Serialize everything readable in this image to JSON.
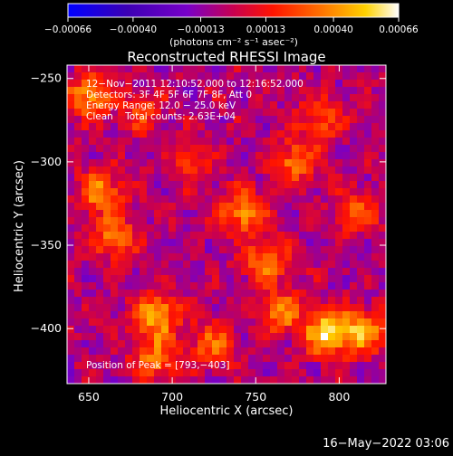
{
  "chart_data": {
    "type": "heatmap",
    "title": "Reconstructed RHESSI Image",
    "xlabel": "Heliocentric X (arcsec)",
    "ylabel": "Heliocentric Y (arcsec)",
    "xlim": [
      637,
      828
    ],
    "ylim": [
      -433,
      -242
    ],
    "xticks": [
      650,
      700,
      750,
      800
    ],
    "yticks": [
      -250,
      -300,
      -350,
      -400
    ],
    "xtick_labels": [
      "650",
      "700",
      "750",
      "800"
    ],
    "ytick_labels": [
      "−250",
      "−300",
      "−350",
      "−400"
    ],
    "colorbar": {
      "range": [
        -0.00066,
        0.00066
      ],
      "tick_values": [
        -0.00066,
        -0.0004,
        -0.00013,
        0.00013,
        0.0004,
        0.00066
      ],
      "tick_labels": [
        "−0.00066",
        "−0.00040",
        "−0.00013",
        "0.00013",
        "0.00040",
        "0.00066"
      ],
      "unit_label": "(photons cm⁻² s⁻¹ asec⁻²)"
    },
    "annotations": [
      "12−Nov−2011 12:10:52.000 to 12:16:52.000",
      "Detectors: 3F 4F 5F 6F 7F 8F, Att 0",
      "Energy Range: 12.0 − 25.0 keV",
      "Clean    Total counts: 2.63E+04"
    ],
    "peak_text": "Position of Peak = [793,−403]",
    "peak": [
      793,
      -403
    ],
    "sources": [
      {
        "x": 651,
        "y": -260,
        "value": 0.0005
      },
      {
        "x": 683,
        "y": -270,
        "value": 0.00025
      },
      {
        "x": 657,
        "y": -318,
        "value": 0.00045
      },
      {
        "x": 665,
        "y": -345,
        "value": 0.0004
      },
      {
        "x": 712,
        "y": -300,
        "value": 0.00028
      },
      {
        "x": 743,
        "y": -330,
        "value": 0.0005
      },
      {
        "x": 756,
        "y": -360,
        "value": 0.00042
      },
      {
        "x": 773,
        "y": -300,
        "value": 0.0004
      },
      {
        "x": 789,
        "y": -275,
        "value": 0.00032
      },
      {
        "x": 810,
        "y": -330,
        "value": 0.00036
      },
      {
        "x": 691,
        "y": -392,
        "value": 0.00055
      },
      {
        "x": 690,
        "y": -418,
        "value": 0.0004
      },
      {
        "x": 766,
        "y": -390,
        "value": 0.00042
      },
      {
        "x": 793,
        "y": -403,
        "value": 0.00066
      },
      {
        "x": 814,
        "y": -402,
        "value": 0.0005
      },
      {
        "x": 724,
        "y": -410,
        "value": 0.00035
      }
    ],
    "background_level": -5e-05
  },
  "timestamp": "16−May−2022 03:06",
  "colors": {
    "background": "#000000",
    "foreground": "#ffffff",
    "colormap": [
      "#0000ff",
      "#3c00b4",
      "#7800c8",
      "#c80050",
      "#ff1400",
      "#ff6e00",
      "#ffd200",
      "#ffffff"
    ]
  }
}
